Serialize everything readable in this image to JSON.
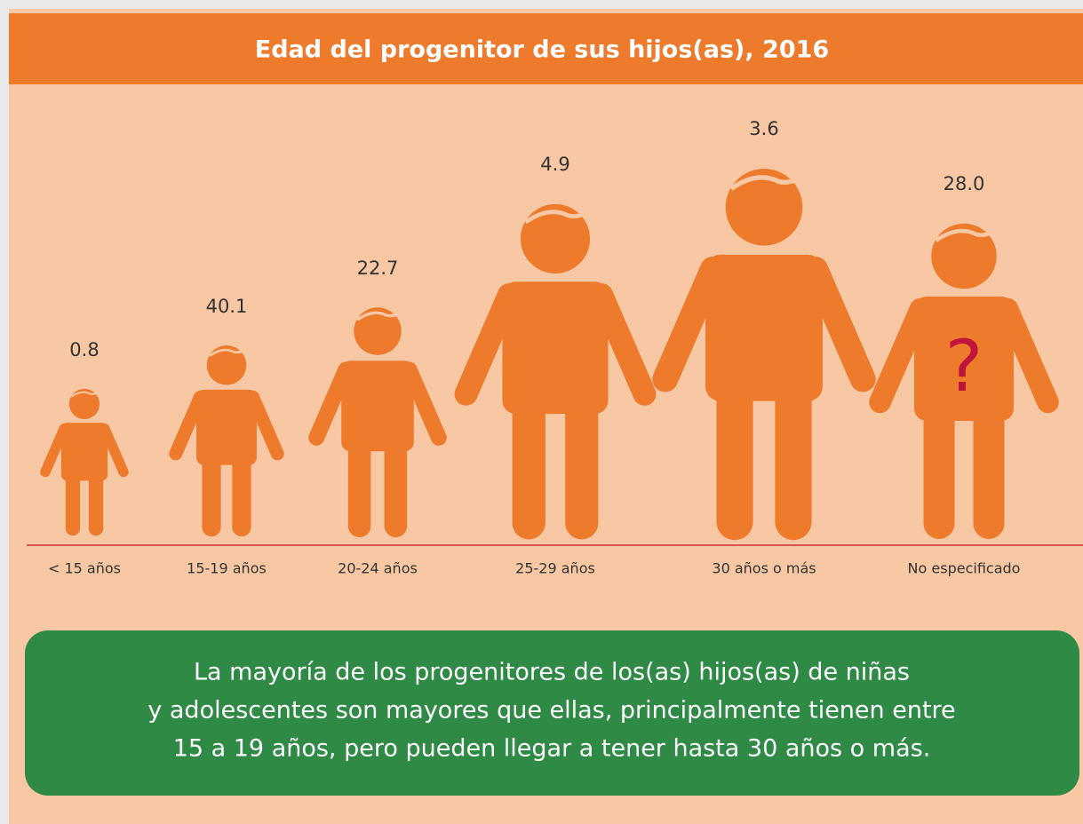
{
  "title": "Edad del progenitor de sus hijos(as), 2016",
  "items": [
    {
      "label": "< 15 años",
      "value": "0.8"
    },
    {
      "label": "15-19 años",
      "value": "40.1"
    },
    {
      "label": "20-24 años",
      "value": "22.7"
    },
    {
      "label": "25-29 años",
      "value": "4.9"
    },
    {
      "label": "30 años o más",
      "value": "3.6"
    },
    {
      "label": "No especificado",
      "value": "28.0"
    }
  ],
  "unknown_mark": "?",
  "note": [
    "La mayoría de los progenitores de los(as) hijos(as) de niñas",
    "y adolescentes  son mayores que ellas, principalmente tienen entre",
    "15 a 19 años, pero pueden llegar a tener hasta 30 años o más."
  ]
}
